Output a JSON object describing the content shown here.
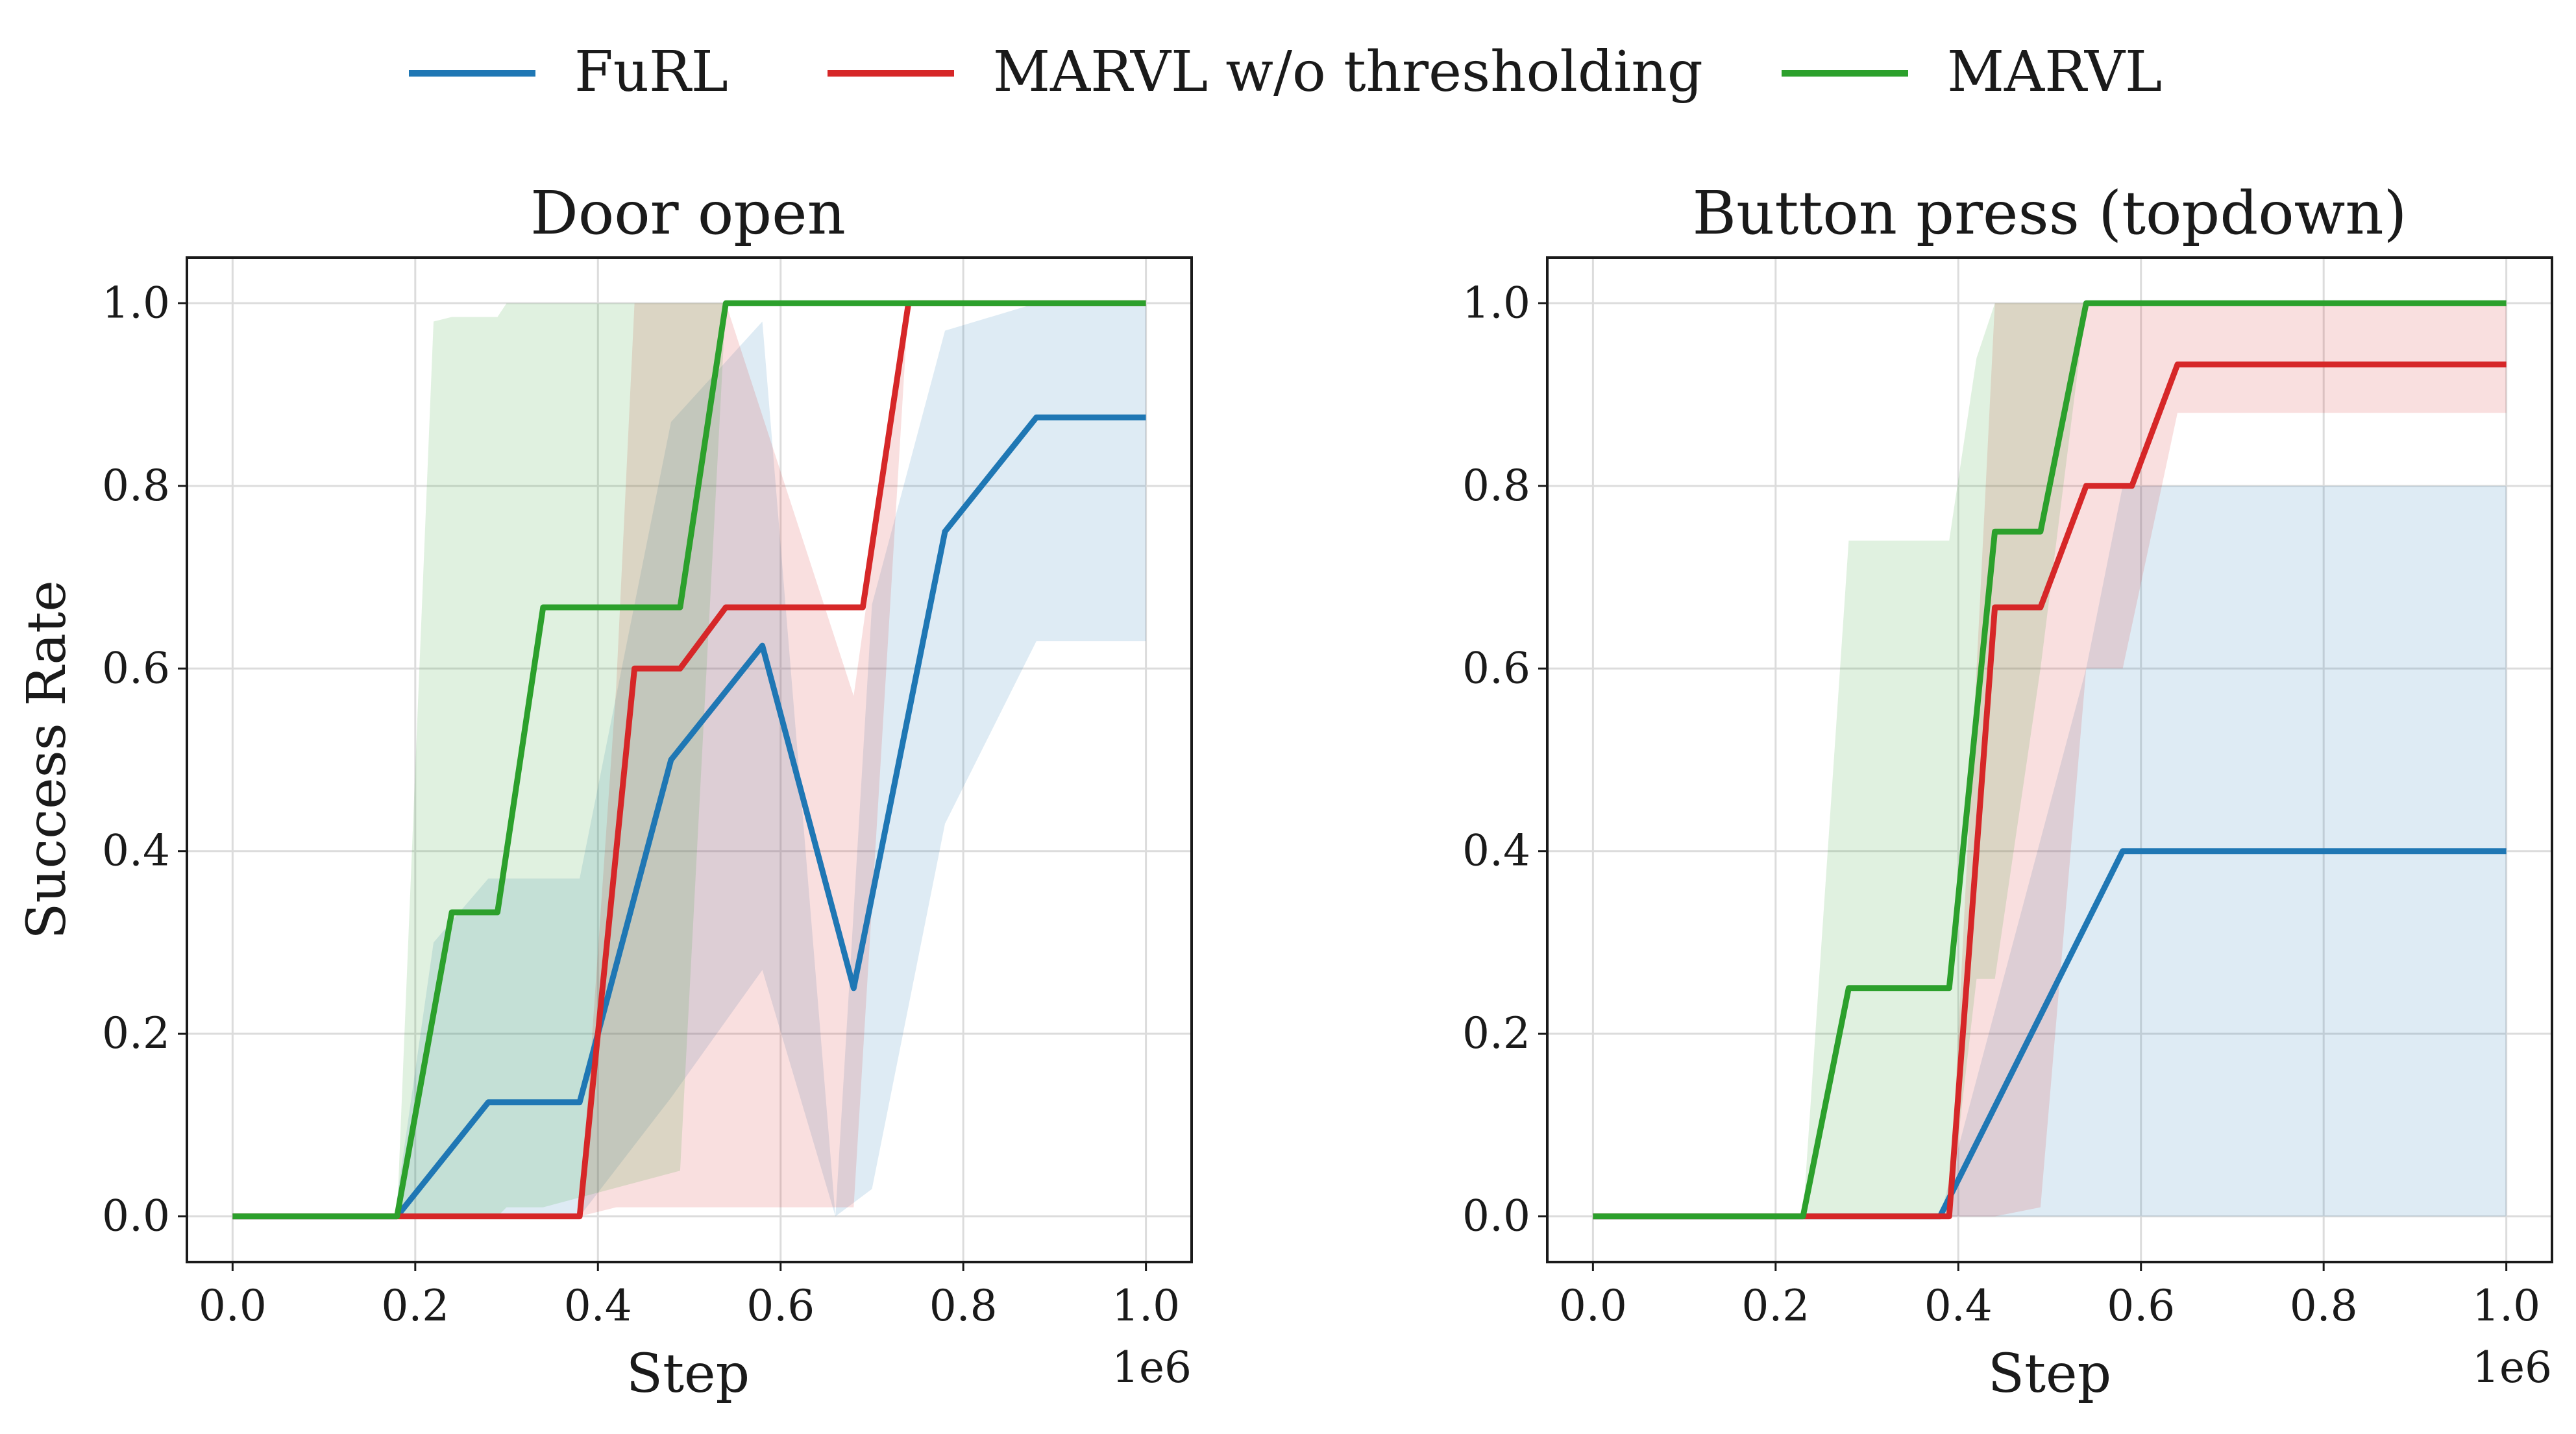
{
  "legend": [
    {
      "label": "FuRL",
      "color": "#1f77b4"
    },
    {
      "label": "MARVL w/o thresholding",
      "color": "#d62728"
    },
    {
      "label": "MARVL",
      "color": "#2ca02c"
    }
  ],
  "chart_data": [
    {
      "type": "line",
      "title": "Door open",
      "xlabel": "Step",
      "ylabel": "Success Rate",
      "x_offset_label": "1e6",
      "xlim": [
        -0.05,
        1.05
      ],
      "ylim": [
        -0.05,
        1.05
      ],
      "xticks": [
        "0.0",
        "0.2",
        "0.4",
        "0.6",
        "0.8",
        "1.0"
      ],
      "xtick_values": [
        0.0,
        0.2,
        0.4,
        0.6,
        0.8,
        1.0
      ],
      "yticks": [
        "0.0",
        "0.2",
        "0.4",
        "0.6",
        "0.8",
        "1.0"
      ],
      "ytick_values": [
        0.0,
        0.2,
        0.4,
        0.6,
        0.8,
        1.0
      ],
      "grid": true,
      "series": [
        {
          "name": "FuRL",
          "color": "#1f77b4",
          "x": [
            0.0,
            0.18,
            0.28,
            0.38,
            0.48,
            0.58,
            0.68,
            0.78,
            0.88,
            1.0
          ],
          "y": [
            0.0,
            0.0,
            0.125,
            0.125,
            0.5,
            0.625,
            0.25,
            0.75,
            0.875,
            0.875
          ],
          "band_x": [
            0.18,
            0.22,
            0.28,
            0.38,
            0.48,
            0.58,
            0.66,
            0.7,
            0.78,
            0.88,
            1.0
          ],
          "band_low": [
            0.0,
            0.0,
            0.0,
            0.0,
            0.13,
            0.27,
            0.0,
            0.03,
            0.43,
            0.63,
            0.63
          ],
          "band_high": [
            0.02,
            0.3,
            0.37,
            0.37,
            0.87,
            0.98,
            0.0,
            0.67,
            0.97,
            1.0,
            1.0
          ]
        },
        {
          "name": "MARVL w/o thresholding",
          "color": "#d62728",
          "x": [
            0.0,
            0.38,
            0.44,
            0.49,
            0.54,
            0.69,
            0.74,
            1.0
          ],
          "y": [
            0.0,
            0.0,
            0.6,
            0.6,
            0.667,
            0.667,
            1.0,
            1.0
          ],
          "band_x": [
            0.38,
            0.42,
            0.44,
            0.49,
            0.54,
            0.68,
            0.74,
            1.0
          ],
          "band_low": [
            0.0,
            0.01,
            0.01,
            0.01,
            0.01,
            0.01,
            1.0,
            1.0
          ],
          "band_high": [
            0.0,
            0.58,
            1.0,
            1.0,
            1.0,
            0.57,
            1.0,
            1.0
          ]
        },
        {
          "name": "MARVL",
          "color": "#2ca02c",
          "x": [
            0.0,
            0.18,
            0.24,
            0.29,
            0.34,
            0.49,
            0.54,
            1.0
          ],
          "y": [
            0.0,
            0.0,
            0.333,
            0.333,
            0.667,
            0.667,
            1.0,
            1.0
          ],
          "band_x": [
            0.18,
            0.22,
            0.24,
            0.29,
            0.3,
            0.34,
            0.49,
            0.54,
            1.0
          ],
          "band_low": [
            0.0,
            0.0,
            0.0,
            0.0,
            0.01,
            0.01,
            0.05,
            1.0,
            1.0
          ],
          "band_high": [
            0.0,
            0.98,
            0.985,
            0.985,
            1.0,
            1.0,
            1.0,
            1.0,
            1.0
          ]
        }
      ]
    },
    {
      "type": "line",
      "title": "Button press (topdown)",
      "xlabel": "Step",
      "ylabel": "",
      "x_offset_label": "1e6",
      "xlim": [
        -0.05,
        1.05
      ],
      "ylim": [
        -0.05,
        1.05
      ],
      "xticks": [
        "0.0",
        "0.2",
        "0.4",
        "0.6",
        "0.8",
        "1.0"
      ],
      "xtick_values": [
        0.0,
        0.2,
        0.4,
        0.6,
        0.8,
        1.0
      ],
      "yticks": [
        "0.0",
        "0.2",
        "0.4",
        "0.6",
        "0.8",
        "1.0"
      ],
      "ytick_values": [
        0.0,
        0.2,
        0.4,
        0.6,
        0.8,
        1.0
      ],
      "grid": true,
      "series": [
        {
          "name": "FuRL",
          "color": "#1f77b4",
          "x": [
            0.0,
            0.38,
            0.58,
            1.0
          ],
          "y": [
            0.0,
            0.0,
            0.4,
            0.4
          ],
          "band_x": [
            0.38,
            0.54,
            0.58,
            1.0
          ],
          "band_low": [
            0.0,
            0.0,
            0.0,
            0.0
          ],
          "band_high": [
            0.0,
            0.6,
            0.8,
            0.8
          ]
        },
        {
          "name": "MARVL w/o thresholding",
          "color": "#d62728",
          "x": [
            0.0,
            0.39,
            0.44,
            0.49,
            0.54,
            0.59,
            0.64,
            1.0
          ],
          "y": [
            0.0,
            0.0,
            0.667,
            0.667,
            0.8,
            0.8,
            0.933,
            0.933
          ],
          "band_x": [
            0.39,
            0.44,
            0.49,
            0.54,
            0.58,
            0.64,
            1.0
          ],
          "band_low": [
            0.0,
            0.0,
            0.01,
            0.6,
            0.6,
            0.88,
            0.88
          ],
          "band_high": [
            0.0,
            1.0,
            1.0,
            1.0,
            1.0,
            1.0,
            1.0
          ]
        },
        {
          "name": "MARVL",
          "color": "#2ca02c",
          "x": [
            0.0,
            0.23,
            0.28,
            0.39,
            0.44,
            0.49,
            0.54,
            1.0
          ],
          "y": [
            0.0,
            0.0,
            0.25,
            0.25,
            0.75,
            0.75,
            1.0,
            1.0
          ],
          "band_x": [
            0.23,
            0.28,
            0.39,
            0.42,
            0.44,
            0.49,
            0.54,
            1.0
          ],
          "band_low": [
            0.0,
            0.0,
            0.0,
            0.26,
            0.26,
            0.6,
            1.0,
            1.0
          ],
          "band_high": [
            0.0,
            0.74,
            0.74,
            0.94,
            1.0,
            1.0,
            1.0,
            1.0
          ]
        }
      ]
    }
  ]
}
